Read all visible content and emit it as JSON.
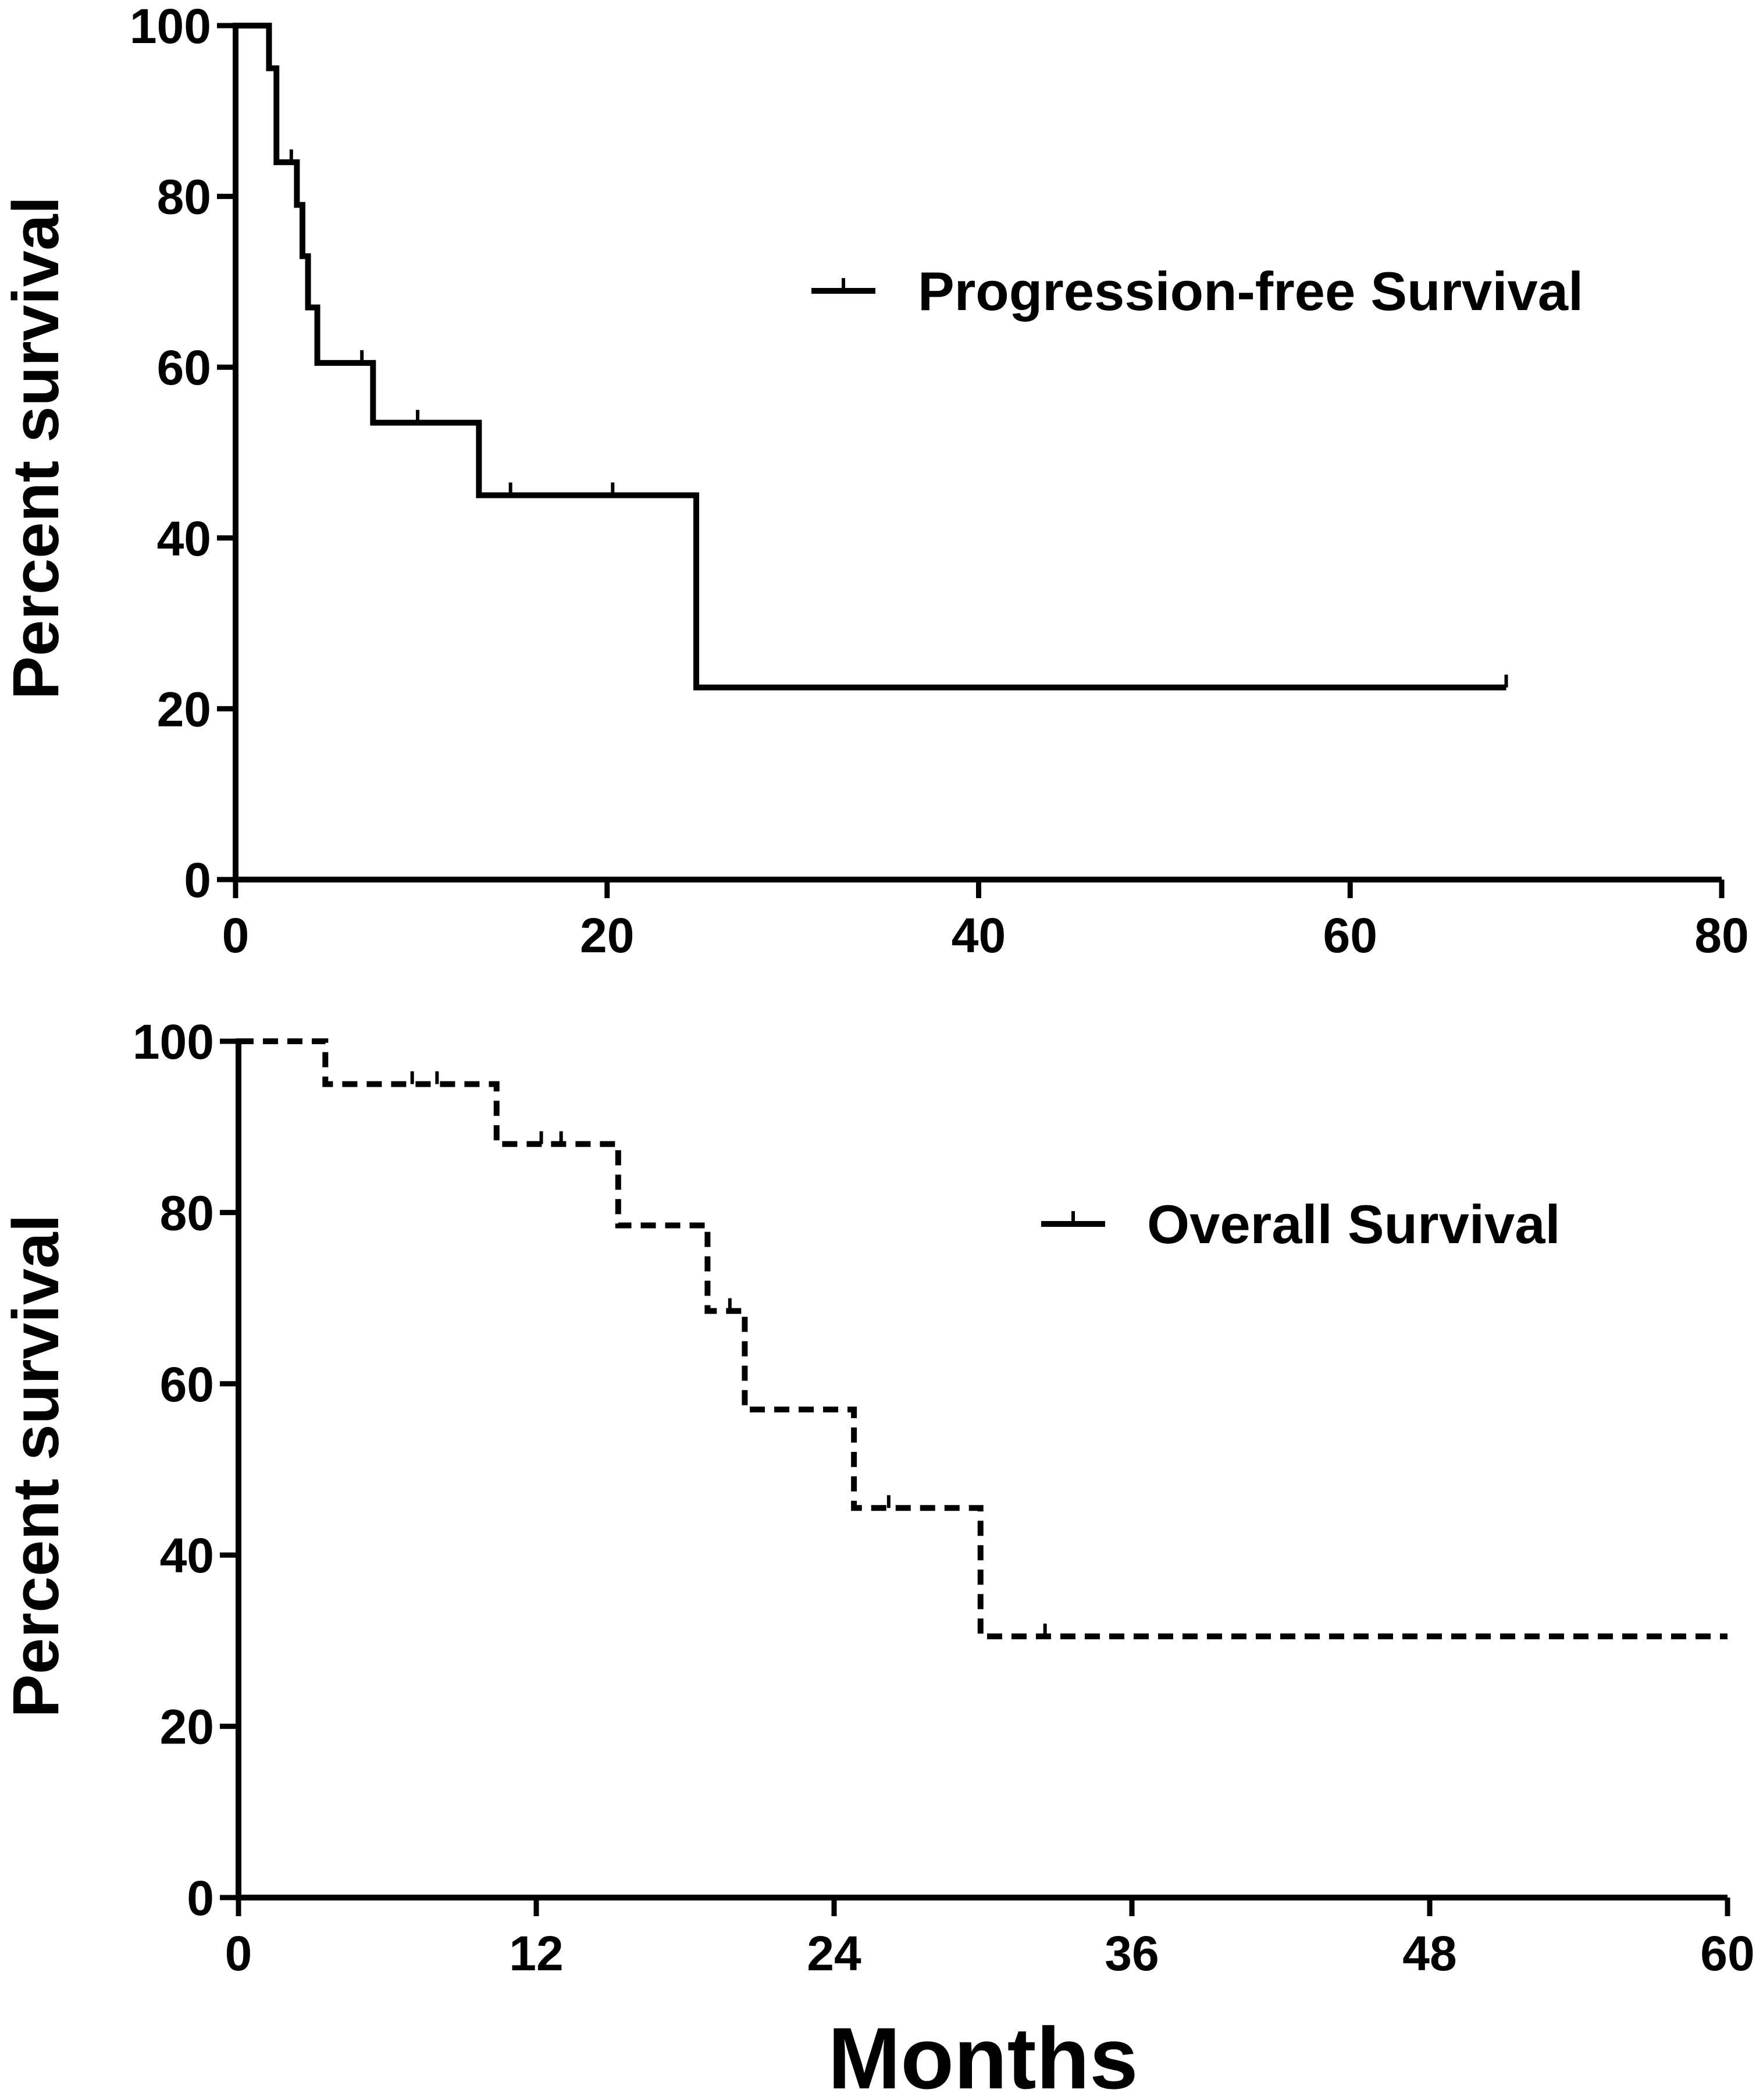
{
  "colors": {
    "line": "#000000",
    "background": "#ffffff"
  },
  "shared": {
    "xlabel": "Months"
  },
  "chart_data": [
    {
      "type": "line",
      "style": "solid step",
      "title": "",
      "ylabel": "Percent survival",
      "xlim": [
        0,
        80
      ],
      "ylim": [
        0,
        100
      ],
      "xticks": [
        0,
        20,
        40,
        60,
        80
      ],
      "yticks": [
        0,
        20,
        40,
        60,
        80,
        100
      ],
      "grid": false,
      "legend": {
        "placement": "upper-right",
        "label": "Progression-free Survival"
      },
      "series": [
        {
          "name": "Progression-free Survival",
          "steps": [
            [
              0,
              100
            ],
            [
              1.8,
              95
            ],
            [
              2.2,
              84
            ],
            [
              3.3,
              79
            ],
            [
              3.6,
              73
            ],
            [
              3.9,
              67
            ],
            [
              4.4,
              60.5
            ],
            [
              7.4,
              53.5
            ],
            [
              13.1,
              45
            ],
            [
              24.8,
              22.5
            ],
            [
              68.4,
              22.5
            ]
          ],
          "censored": [
            [
              3.0,
              84
            ],
            [
              6.8,
              60.5
            ],
            [
              9.8,
              53.5
            ],
            [
              14.8,
              45
            ],
            [
              20.3,
              45
            ],
            [
              68.4,
              22.5
            ]
          ]
        }
      ]
    },
    {
      "type": "line",
      "style": "dashed step",
      "title": "",
      "ylabel": "Percent survival",
      "xlim": [
        0,
        60
      ],
      "ylim": [
        0,
        100
      ],
      "xticks": [
        0,
        12,
        24,
        36,
        48,
        60
      ],
      "yticks": [
        0,
        20,
        40,
        60,
        80,
        100
      ],
      "grid": false,
      "legend": {
        "placement": "upper-right",
        "label": "Overall Survival"
      },
      "series": [
        {
          "name": "Overall Survival",
          "steps": [
            [
              0,
              100
            ],
            [
              3.5,
              95
            ],
            [
              10.4,
              88
            ],
            [
              15.3,
              78.5
            ],
            [
              18.9,
              68.5
            ],
            [
              20.4,
              57
            ],
            [
              24.8,
              45.5
            ],
            [
              29.9,
              30.5
            ],
            [
              60,
              30.5
            ]
          ],
          "censored": [
            [
              7.0,
              95
            ],
            [
              8.0,
              95
            ],
            [
              12.2,
              88
            ],
            [
              13.0,
              88
            ],
            [
              19.8,
              68.5
            ],
            [
              26.2,
              45.5
            ],
            [
              32.5,
              30.5
            ]
          ]
        }
      ]
    }
  ]
}
